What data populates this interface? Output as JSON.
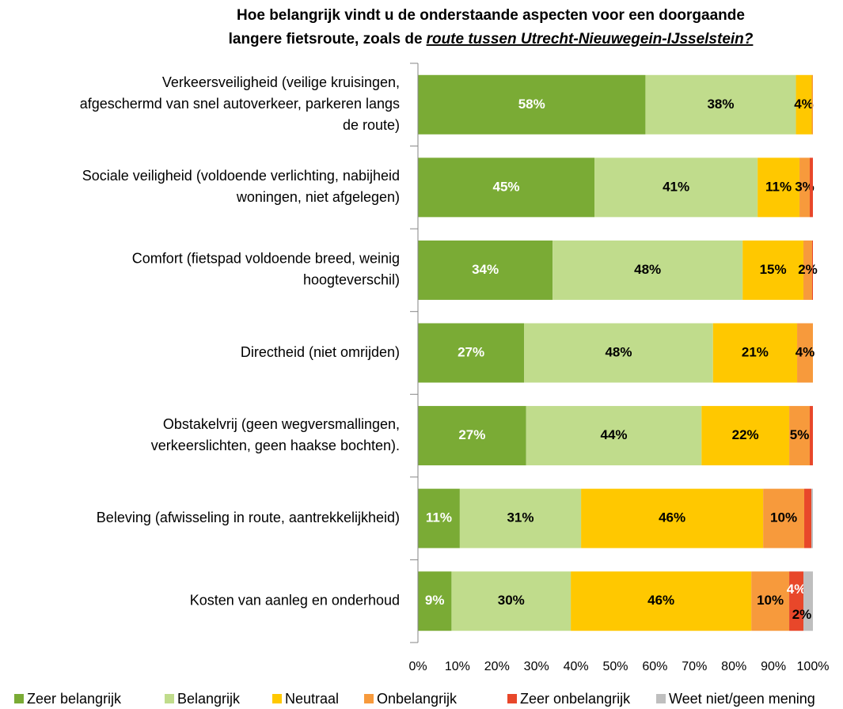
{
  "chart_data": {
    "type": "stacked-barh",
    "title": [
      "Hoe belangrijk vindt u de onderstaande aspecten voor een doorgaande",
      "langere fietsroute, zoals de",
      "route tussen Utrecht-Nieuwegein-IJsselstein?"
    ],
    "categories": [
      [
        "Verkeersveiligheid (veilige kruisingen,",
        "afgeschermd van snel autoverkeer, parkeren langs",
        "de route)"
      ],
      [
        "Sociale veiligheid (voldoende verlichting, nabijheid",
        "woningen, niet afgelegen)"
      ],
      [
        "Comfort (fietspad voldoende breed, weinig",
        "hoogteverschil)"
      ],
      [
        "Directheid (niet omrijden)"
      ],
      [
        "Obstakelvrij (geen wegversmallingen,",
        "verkeerslichten, geen haakse bochten)."
      ],
      [
        "Beleving (afwisseling in route, aantrekkelijkheid)"
      ],
      [
        "Kosten van aanleg en onderhoud"
      ]
    ],
    "series": [
      {
        "name": "Zeer belangrijk",
        "color": "#7aab35",
        "label_color": "#ffffff",
        "values": [
          57.6,
          44.7,
          34.1,
          26.9,
          27.4,
          10.6,
          8.5
        ],
        "value_labels": [
          "58%",
          "45%",
          "34%",
          "27%",
          "27%",
          "11%",
          "9%"
        ]
      },
      {
        "name": "Belangrijk",
        "color": "#c0dc8c",
        "label_color": "#000000",
        "values": [
          38.1,
          41.3,
          48.1,
          47.8,
          44.4,
          30.7,
          30.2
        ],
        "value_labels": [
          "38%",
          "41%",
          "48%",
          "48%",
          "44%",
          "31%",
          "30%"
        ]
      },
      {
        "name": "Neutraal",
        "color": "#ffc800",
        "label_color": "#000000",
        "values": [
          4.0,
          10.6,
          15.4,
          21.3,
          22.2,
          46.1,
          45.7
        ],
        "value_labels": [
          "4%",
          "11%",
          "15%",
          "21%",
          "22%",
          "46%",
          "46%"
        ]
      },
      {
        "name": "Onbelangrijk",
        "color": "#f79a3c",
        "label_color": "#000000",
        "values": [
          0.3,
          2.6,
          2.2,
          4.0,
          5.2,
          10.4,
          9.6
        ],
        "value_labels": [
          null,
          "3%",
          "2%",
          "4%",
          "5%",
          "10%",
          "10%"
        ]
      },
      {
        "name": "Zeer onbelangrijk",
        "color": "#e8472a",
        "label_color": "#ffffff",
        "values": [
          0,
          0.8,
          0.2,
          0,
          0.8,
          1.8,
          3.6
        ],
        "value_labels": [
          null,
          null,
          null,
          null,
          null,
          null,
          "4%"
        ]
      },
      {
        "name": "Weet niet/geen mening",
        "color": "#bfbfbf",
        "label_color": "#000000",
        "values": [
          0,
          0,
          0,
          0,
          0,
          0.4,
          2.4
        ],
        "value_labels": [
          null,
          null,
          null,
          null,
          null,
          null,
          "2%"
        ]
      }
    ],
    "xlim": [
      0,
      100
    ],
    "xticks": [
      {
        "value": 0,
        "label": "0%"
      },
      {
        "value": 10,
        "label": "10%"
      },
      {
        "value": 20,
        "label": "20%"
      },
      {
        "value": 30,
        "label": "30%"
      },
      {
        "value": 40,
        "label": "40%"
      },
      {
        "value": 50,
        "label": "50%"
      },
      {
        "value": 60,
        "label": "60%"
      },
      {
        "value": 70,
        "label": "70%"
      },
      {
        "value": 80,
        "label": "80%"
      },
      {
        "value": 90,
        "label": "90%"
      },
      {
        "value": 100,
        "label": "100%"
      }
    ],
    "legend": "bottom"
  }
}
